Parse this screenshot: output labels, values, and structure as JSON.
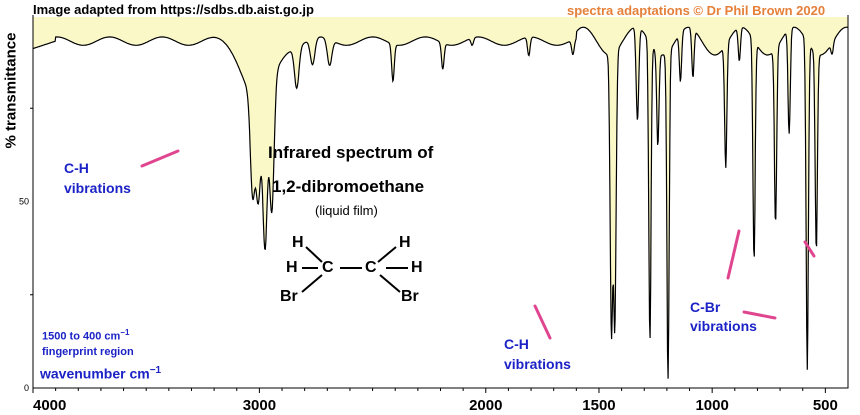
{
  "header": {
    "source": "Image adapted from https://sdbs.db.aist.go.jp",
    "credit": "spectra adaptations © Dr Phil Brown 2020"
  },
  "titles": {
    "line1": "Infrared spectrum of",
    "line2": "1,2-dibromoethane",
    "note": "(liquid film)"
  },
  "annotations": {
    "ch_left_1": "C-H",
    "ch_left_2": "vibrations",
    "ch_right_1": "C-H",
    "ch_right_2": "vibrations",
    "cbr_1": "C-Br",
    "cbr_2": "vibrations",
    "fingerprint_1": "1500 to 400 cm",
    "fingerprint_sup": "−1",
    "fingerprint_2": "fingerprint region"
  },
  "molecule": {
    "atoms": [
      "H",
      "H",
      "H",
      "H",
      "C",
      "C",
      "Br",
      "Br"
    ]
  },
  "colors": {
    "blue_text": "#1b22c6",
    "pink": "#e0458f",
    "fill": "#fbf8c8",
    "trace": "#000000"
  },
  "chart_data": {
    "type": "line",
    "title": "Infrared spectrum of 1,2-dibromoethane",
    "xlabel": "wavenumber  cm",
    "xlabel_sup": "−1",
    "ylabel": "% transmittance",
    "xlim": [
      4000,
      400
    ],
    "ylim": [
      0,
      100
    ],
    "x_ticks": [
      4000,
      3000,
      2000,
      1500,
      1000,
      500
    ],
    "x_tick_labels": [
      "4000",
      "3000",
      "2000",
      "1500",
      "1000",
      "500"
    ],
    "y_ticks": [
      0,
      50
    ],
    "y_tick_labels": [
      "0",
      "50"
    ],
    "baseline": 93,
    "fill_below_trace": true,
    "bands": [
      {
        "x": 3030,
        "y": 67
      },
      {
        "x": 3005,
        "y": 67
      },
      {
        "x": 2975,
        "y": 52
      },
      {
        "x": 2945,
        "y": 58
      },
      {
        "x": 2835,
        "y": 82
      },
      {
        "x": 2765,
        "y": 86
      },
      {
        "x": 2690,
        "y": 86
      },
      {
        "x": 2410,
        "y": 83
      },
      {
        "x": 2190,
        "y": 86
      },
      {
        "x": 2060,
        "y": 91
      },
      {
        "x": 1810,
        "y": 88
      },
      {
        "x": 1615,
        "y": 89
      },
      {
        "x": 1445,
        "y": 19
      },
      {
        "x": 1430,
        "y": 20
      },
      {
        "x": 1330,
        "y": 68
      },
      {
        "x": 1275,
        "y": 13
      },
      {
        "x": 1240,
        "y": 68
      },
      {
        "x": 1195,
        "y": 5
      },
      {
        "x": 1140,
        "y": 80
      },
      {
        "x": 1085,
        "y": 80
      },
      {
        "x": 940,
        "y": 60
      },
      {
        "x": 880,
        "y": 84
      },
      {
        "x": 815,
        "y": 34
      },
      {
        "x": 720,
        "y": 46
      },
      {
        "x": 660,
        "y": 65
      },
      {
        "x": 580,
        "y": 5
      },
      {
        "x": 540,
        "y": 40
      },
      {
        "x": 470,
        "y": 90
      }
    ]
  }
}
